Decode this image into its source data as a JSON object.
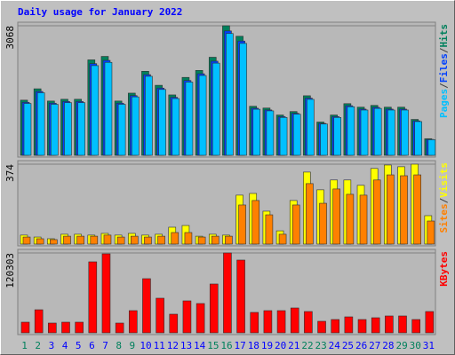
{
  "chart_data": [
    {
      "type": "bar",
      "title": "Daily usage for January 2022",
      "legend_separator": "/",
      "ylim": [
        0,
        3068
      ],
      "yticks": [
        3068
      ],
      "series": [
        {
          "name": "Hits",
          "color": "#00805c",
          "values": [
            1306,
            1575,
            1285,
            1327,
            1327,
            2260,
            2342,
            1285,
            1472,
            1990,
            1658,
            1430,
            1845,
            2011,
            2322,
            3068,
            2819,
            1161,
            1119,
            954,
            1036,
            1410,
            788,
            954,
            1223,
            1140,
            1182,
            1140,
            1140,
            850,
            394
          ]
        },
        {
          "name": "Files",
          "color": "#0040ff",
          "values": [
            1254,
            1512,
            1234,
            1274,
            1274,
            2170,
            2248,
            1234,
            1413,
            1910,
            1592,
            1373,
            1771,
            1931,
            2229,
            2945,
            2706,
            1115,
            1074,
            916,
            995,
            1354,
            756,
            916,
            1174,
            1094,
            1135,
            1094,
            1094,
            816,
            378
          ]
        },
        {
          "name": "Pages",
          "color": "#00c0ff",
          "values": [
            1228,
            1481,
            1208,
            1247,
            1247,
            2124,
            2201,
            1208,
            1384,
            1871,
            1559,
            1344,
            1734,
            1890,
            2183,
            2884,
            2650,
            1091,
            1052,
            897,
            974,
            1325,
            741,
            897,
            1150,
            1072,
            1111,
            1072,
            1072,
            799,
            370
          ]
        }
      ]
    },
    {
      "type": "bar",
      "legend_separator": "/",
      "ylim": [
        0,
        374
      ],
      "yticks": [
        374
      ],
      "series": [
        {
          "name": "Visits",
          "color": "#ffff00",
          "values": [
            42,
            33,
            25,
            46,
            46,
            42,
            50,
            42,
            50,
            42,
            46,
            79,
            87,
            37,
            46,
            42,
            229,
            237,
            154,
            62,
            204,
            337,
            254,
            300,
            300,
            275,
            354,
            370,
            362,
            374,
            133
          ]
        },
        {
          "name": "Sites",
          "color": "#ff8000",
          "values": [
            33,
            25,
            21,
            37,
            37,
            37,
            42,
            33,
            37,
            33,
            37,
            54,
            54,
            33,
            37,
            37,
            183,
            204,
            137,
            46,
            183,
            283,
            191,
            258,
            233,
            229,
            300,
            324,
            320,
            324,
            108
          ]
        }
      ]
    },
    {
      "type": "bar",
      "ylim": [
        0,
        120303
      ],
      "yticks": [
        120303
      ],
      "categories": [
        "1",
        "2",
        "3",
        "4",
        "5",
        "6",
        "7",
        "8",
        "9",
        "10",
        "11",
        "12",
        "13",
        "14",
        "15",
        "16",
        "17",
        "18",
        "19",
        "20",
        "21",
        "22",
        "23",
        "24",
        "25",
        "26",
        "27",
        "28",
        "29",
        "30",
        "31"
      ],
      "category_colors": [
        "#00805c",
        "#00805c",
        "#0000ff",
        "#0000ff",
        "#0000ff",
        "#0000ff",
        "#0000ff",
        "#00805c",
        "#00805c",
        "#0000ff",
        "#0000ff",
        "#0000ff",
        "#0000ff",
        "#0000ff",
        "#00805c",
        "#00805c",
        "#0000ff",
        "#0000ff",
        "#0000ff",
        "#0000ff",
        "#0000ff",
        "#00805c",
        "#00805c",
        "#0000ff",
        "#0000ff",
        "#0000ff",
        "#0000ff",
        "#0000ff",
        "#00805c",
        "#00805c",
        "#0000ff"
      ],
      "series": [
        {
          "name": "KBytes",
          "color": "#ff0000",
          "values": [
            16040,
            34750,
            14700,
            16040,
            16040,
            106940,
            118970,
            14700,
            33420,
            81550,
            52140,
            28070,
            48130,
            44120,
            73530,
            120303,
            109610,
            30740,
            33420,
            33420,
            37430,
            32080,
            17380,
            20050,
            24060,
            20050,
            22720,
            25400,
            25400,
            20050,
            32080
          ]
        }
      ]
    }
  ]
}
